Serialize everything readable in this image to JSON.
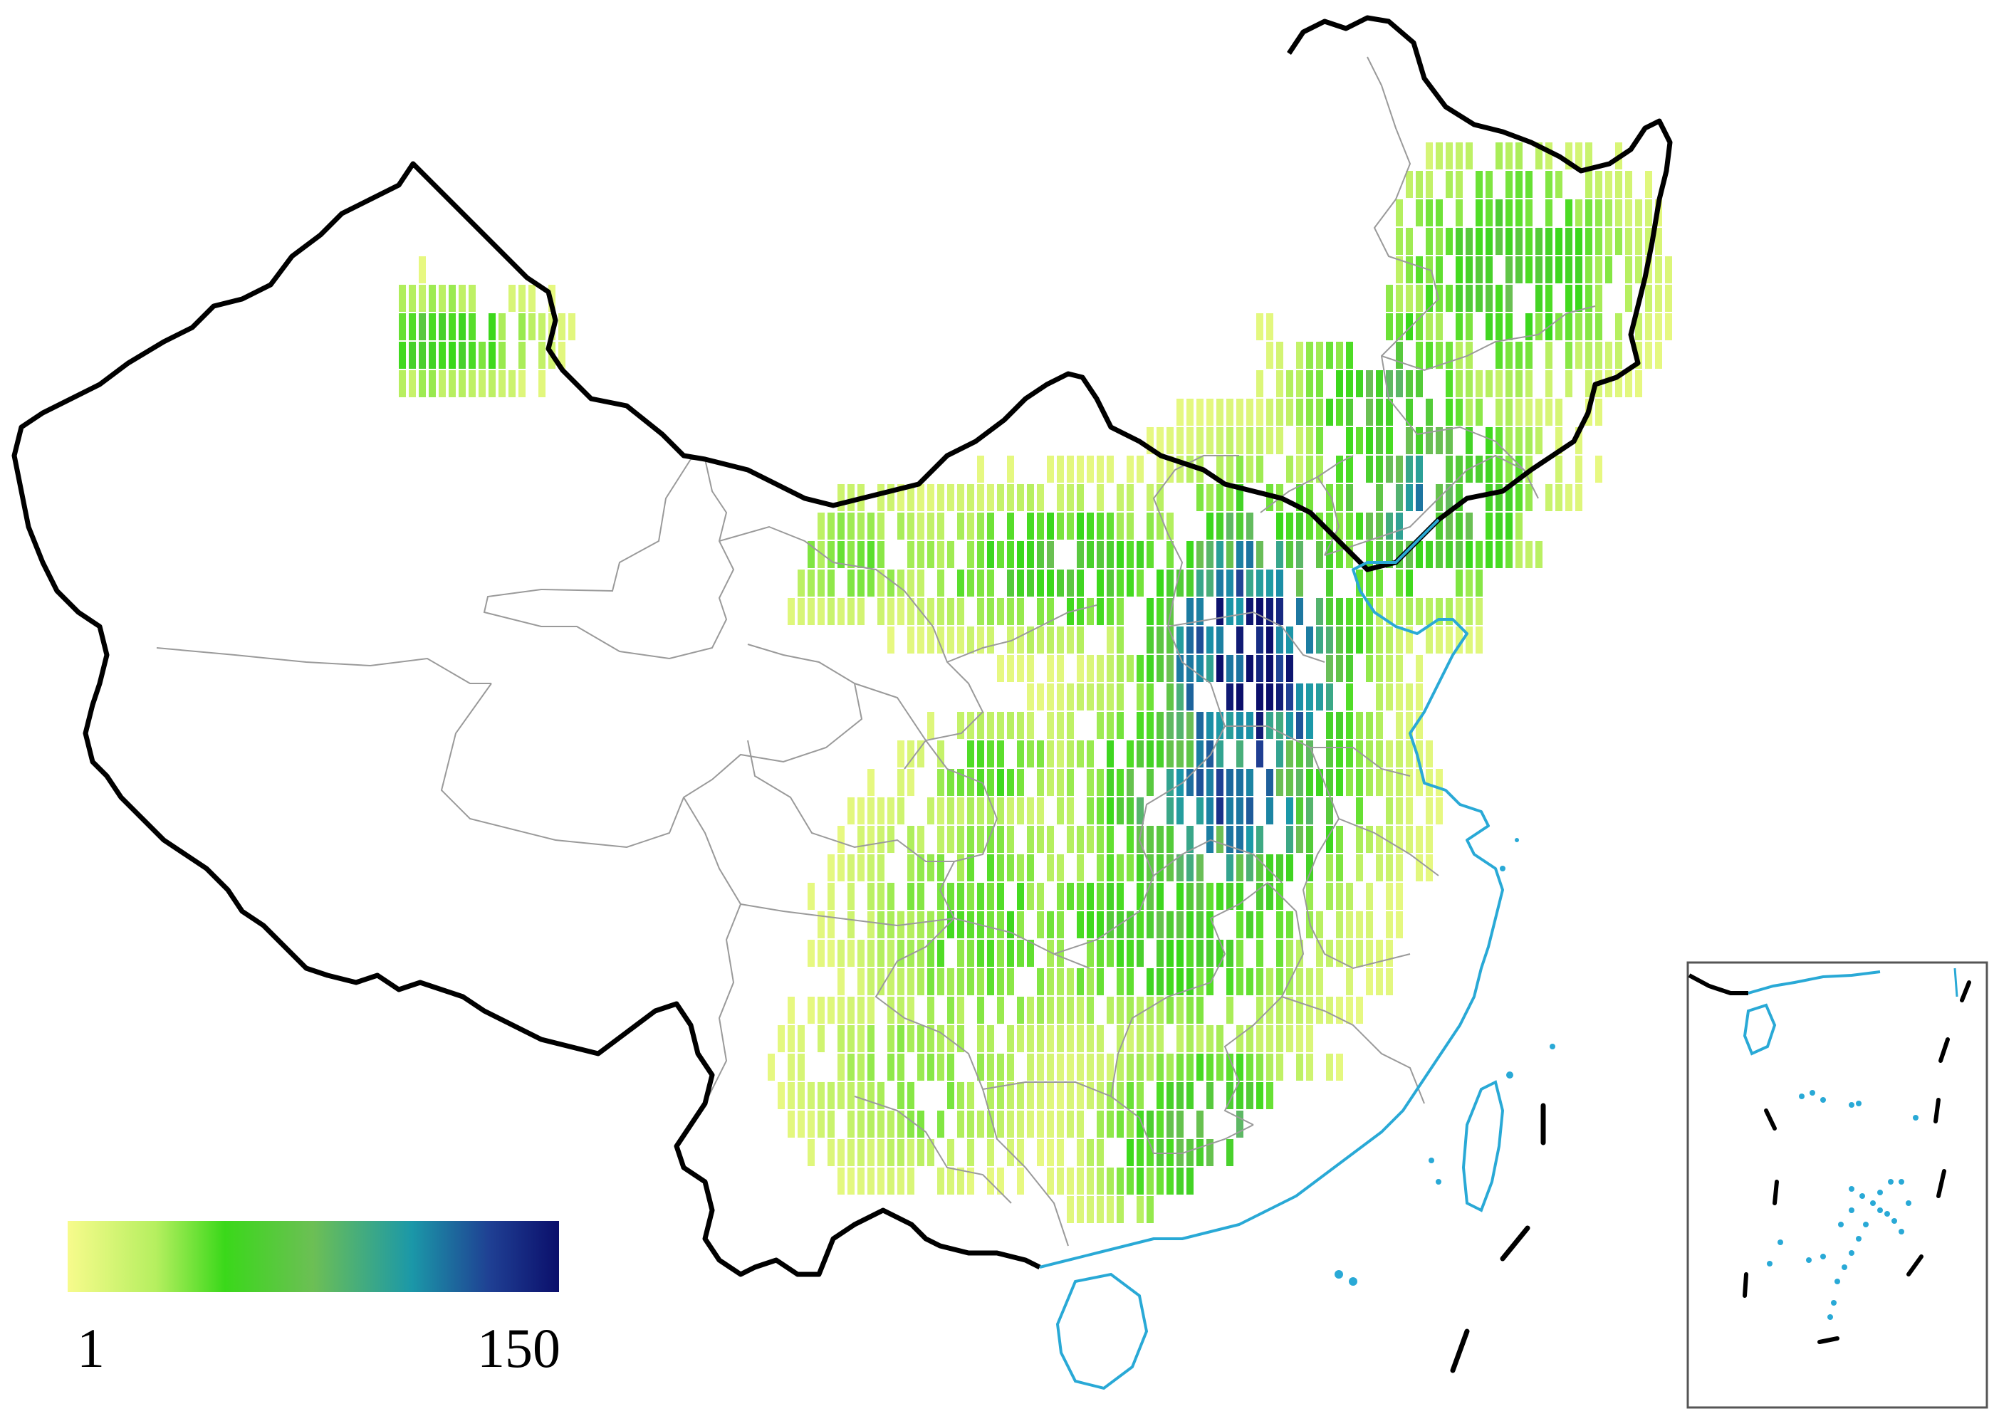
{
  "legend": {
    "min_label": "1",
    "max_label": "150",
    "min_value": 1,
    "max_value": 150,
    "colorscale": [
      "#f7fb8c",
      "#b5ef5f",
      "#3ad81a",
      "#6cbf55",
      "#1b98a8",
      "#1f3f93",
      "#0b0f6b"
    ]
  },
  "colors": {
    "national_border": "#000000",
    "province_border": "#9a9a9a",
    "coastline": "#29a9d6",
    "inset_frame": "#555555",
    "nine_dash": "#000000"
  }
}
